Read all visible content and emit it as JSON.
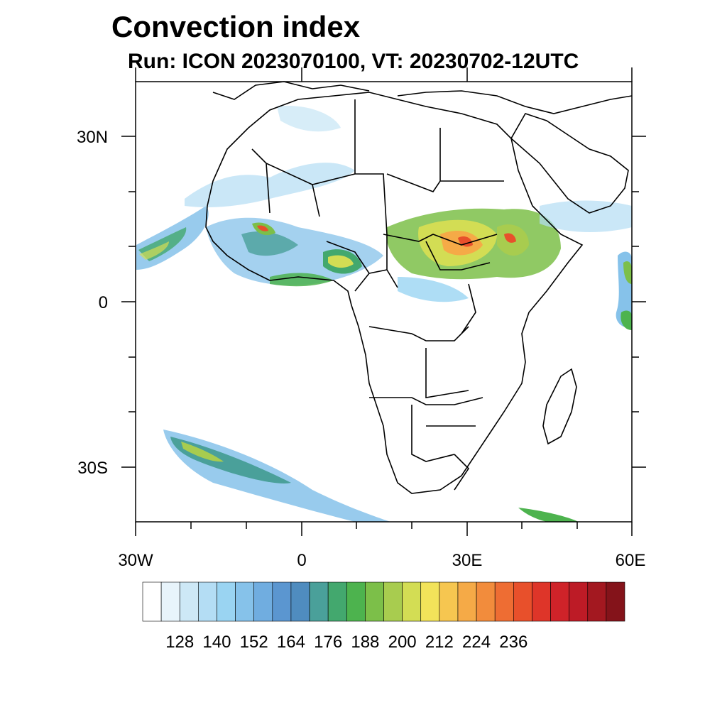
{
  "header": {
    "title": "Convection index",
    "subtitle": "Run: ICON 2023070100,  VT: 20230702-12UTC"
  },
  "axes": {
    "lon_labels": [
      "30W",
      "0",
      "30E",
      "60E"
    ],
    "lat_labels": [
      "30N",
      "0",
      "30S"
    ]
  },
  "colorbar": {
    "labels": [
      "128",
      "140",
      "152",
      "164",
      "176",
      "188",
      "200",
      "212",
      "224",
      "236"
    ],
    "colors": [
      "#ffffff",
      "#e8f4fb",
      "#cde8f6",
      "#b4ddf4",
      "#9ad4f2",
      "#86c2ea",
      "#70ade0",
      "#5b96d0",
      "#4f8cbf",
      "#4aa09a",
      "#43a86e",
      "#4db34e",
      "#7cbf49",
      "#a8cc4f",
      "#d3dd54",
      "#f2e35a",
      "#f6c650",
      "#f5aa47",
      "#f28c3c",
      "#ee6d33",
      "#e8502b",
      "#de3529",
      "#cf2329",
      "#bd1b26",
      "#a31820",
      "#84131a"
    ]
  },
  "map": {
    "lon_range": [
      -30,
      60
    ],
    "lat_range": [
      -40,
      40
    ],
    "ocean_color": "#ffffff",
    "land_color": "#ffffff",
    "border_color": "#000000"
  }
}
